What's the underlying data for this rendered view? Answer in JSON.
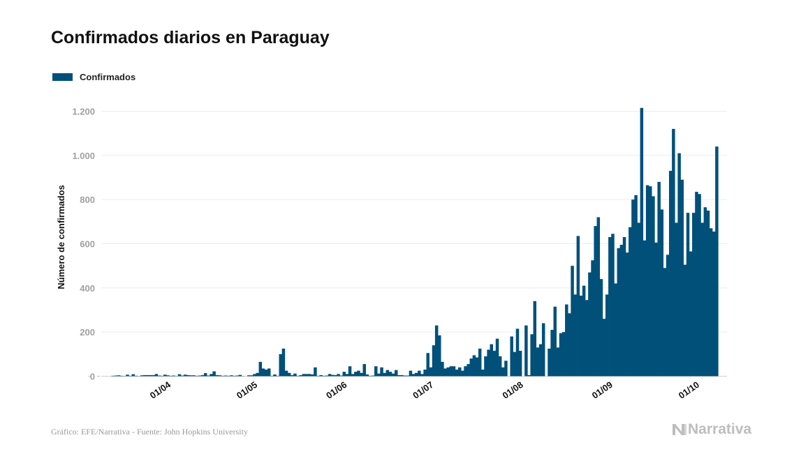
{
  "chart_data": {
    "type": "bar",
    "title": "Confirmados diarios en Paraguay",
    "ylabel": "Número de confirmados",
    "xlabel": "",
    "ylim": [
      0,
      1250
    ],
    "yticks": [
      0,
      200,
      400,
      600,
      800,
      1000,
      1200
    ],
    "ytick_labels": [
      "0",
      "200",
      "400",
      "600",
      "800",
      "1.000",
      "1.200"
    ],
    "xtick_labels": [
      "01/04",
      "01/05",
      "01/06",
      "01/07",
      "01/08",
      "01/09",
      "01/10"
    ],
    "grid": true,
    "legend_position": "top-left",
    "series": [
      {
        "name": "Confirmados",
        "color": "#00507A",
        "start_date": "2020-03-07",
        "values": [
          1,
          0,
          0,
          1,
          0,
          0,
          0,
          0,
          2,
          3,
          4,
          2,
          1,
          7,
          2,
          9,
          2,
          1,
          4,
          5,
          5,
          5,
          5,
          10,
          3,
          2,
          7,
          4,
          2,
          3,
          1,
          9,
          3,
          7,
          5,
          4,
          4,
          2,
          3,
          5,
          14,
          3,
          10,
          22,
          5,
          4,
          2,
          3,
          2,
          4,
          2,
          3,
          6,
          1,
          0,
          4,
          4,
          10,
          15,
          65,
          35,
          30,
          35,
          2,
          8,
          2,
          100,
          125,
          25,
          15,
          5,
          12,
          2,
          5,
          10,
          10,
          10,
          8,
          40,
          2,
          5,
          2,
          3,
          10,
          6,
          5,
          10,
          3,
          20,
          10,
          45,
          10,
          20,
          25,
          15,
          55,
          8,
          2,
          3,
          45,
          12,
          40,
          15,
          28,
          20,
          12,
          28,
          5,
          5,
          3,
          3,
          25,
          10,
          15,
          25,
          10,
          30,
          105,
          40,
          140,
          230,
          185,
          65,
          35,
          40,
          45,
          45,
          30,
          40,
          25,
          45,
          55,
          80,
          95,
          85,
          125,
          30,
          90,
          120,
          145,
          115,
          170,
          90,
          40,
          70,
          0,
          180,
          110,
          215,
          115,
          0,
          230,
          5,
          190,
          340,
          130,
          145,
          240,
          0,
          125,
          210,
          315,
          130,
          195,
          200,
          325,
          285,
          500,
          370,
          635,
          365,
          410,
          345,
          470,
          525,
          680,
          720,
          440,
          260,
          370,
          630,
          645,
          420,
          580,
          595,
          630,
          560,
          675,
          800,
          820,
          695,
          1215,
          615,
          865,
          860,
          815,
          605,
          880,
          755,
          490,
          550,
          930,
          1120,
          695,
          1010,
          890,
          505,
          740,
          565,
          740,
          835,
          825,
          695,
          765,
          750,
          670,
          655,
          1040
        ]
      }
    ],
    "source_text": "Gráfico: EFE/Narrativa - Fuente: John Hopkins University",
    "brand": "Narrativa"
  }
}
